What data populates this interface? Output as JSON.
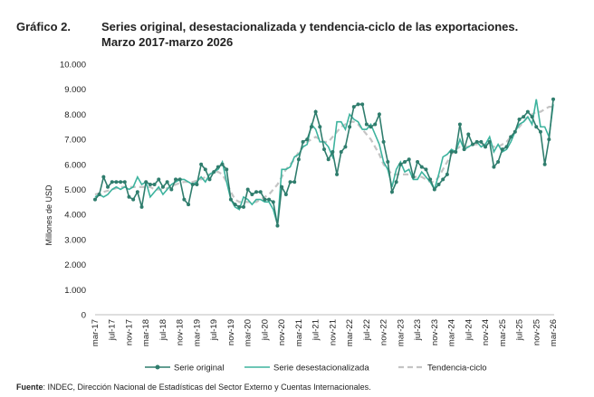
{
  "chart_data": {
    "type": "line",
    "label": "Gráfico 2.",
    "title": "Series original, desestacionalizada y tendencia-ciclo de las exportaciones.",
    "subtitle": "Marzo 2017-marzo 2026",
    "y_label": "Millones de USD",
    "source_label": "Fuente",
    "source": ": INDEC, Dirección Nacional de Estadísticas del Sector Externo y Cuentas Internacionales.",
    "categories": [
      "mar-17",
      null,
      null,
      null,
      "jul-17",
      null,
      null,
      null,
      "nov-17",
      null,
      null,
      null,
      "mar-18",
      null,
      null,
      null,
      "jul-18",
      null,
      null,
      null,
      "nov-18",
      null,
      null,
      null,
      "mar-19",
      null,
      null,
      null,
      "jul-19",
      null,
      null,
      null,
      "nov-19",
      null,
      null,
      null,
      "mar-20",
      null,
      null,
      null,
      "jul-20",
      null,
      null,
      null,
      "nov-20",
      null,
      null,
      null,
      "mar-21",
      null,
      null,
      null,
      "jul-21",
      null,
      null,
      null,
      "nov-21",
      null,
      null,
      null,
      "mar-22",
      null,
      null,
      null,
      "jul-22",
      null,
      null,
      null,
      "nov-22",
      null,
      null,
      null,
      "mar-23",
      null,
      null,
      null,
      "jul-23",
      null,
      null,
      null,
      "nov-23",
      null,
      null,
      null,
      "mar-24",
      null,
      null,
      null,
      "jul-24",
      null,
      null,
      null,
      "nov-24",
      null,
      null,
      null,
      "mar-25",
      null,
      null,
      null,
      "jul-25",
      null,
      null,
      null,
      "nov-25",
      null,
      null,
      null,
      "mar-26"
    ],
    "series": [
      {
        "name": "Serie original",
        "color": "#2f7d6d",
        "markers": true,
        "dashed": false,
        "values": [
          4600,
          4800,
          5500,
          5100,
          5300,
          5300,
          5300,
          5300,
          4700,
          4600,
          4900,
          4300,
          5300,
          5200,
          5200,
          5400,
          5100,
          5300,
          5000,
          5400,
          5400,
          4600,
          4400,
          5200,
          5200,
          6000,
          5800,
          5400,
          5700,
          5900,
          6000,
          5800,
          4600,
          4400,
          4300,
          4300,
          5000,
          4800,
          4900,
          4900,
          4600,
          4600,
          4500,
          3550,
          5100,
          4800,
          5300,
          5300,
          6200,
          6900,
          7000,
          7500,
          8100,
          7500,
          6600,
          6200,
          6500,
          5600,
          6500,
          6700,
          7500,
          8300,
          8400,
          8400,
          7600,
          7500,
          7600,
          8000,
          6900,
          6100,
          4900,
          5300,
          6000,
          6100,
          6200,
          5500,
          6100,
          5900,
          5800,
          5400,
          5000,
          5200,
          5400,
          5600,
          6500,
          6500,
          7600,
          6600,
          7200,
          6800,
          6900,
          6900,
          6700,
          6900,
          5900,
          6100,
          6600,
          6700,
          7100,
          7300,
          7800,
          7900,
          8100,
          7900,
          7500,
          7300,
          6000,
          7000,
          8600
        ]
      },
      {
        "name": "Serie desestacionalizada",
        "color": "#3db39e",
        "markers": false,
        "dashed": false,
        "values": [
          4700,
          4800,
          4700,
          4800,
          5000,
          5100,
          5000,
          5100,
          5000,
          5100,
          5500,
          5200,
          5300,
          4700,
          4900,
          5100,
          4800,
          5000,
          5200,
          5300,
          5400,
          5400,
          5300,
          5200,
          5300,
          5500,
          5300,
          5600,
          5700,
          5800,
          6100,
          5300,
          4600,
          4300,
          4200,
          4700,
          4600,
          4400,
          4600,
          4600,
          4500,
          4500,
          4200,
          3600,
          5800,
          5800,
          5900,
          6300,
          6400,
          6700,
          6800,
          7600,
          7400,
          6900,
          6900,
          6700,
          6300,
          7700,
          7700,
          7400,
          8000,
          7800,
          7700,
          7400,
          7400,
          7600,
          7200,
          6800,
          6100,
          5800,
          5100,
          5800,
          6100,
          5700,
          5800,
          5400,
          5400,
          5700,
          5500,
          5300,
          5000,
          5600,
          6300,
          6400,
          6600,
          6500,
          7000,
          6600,
          6700,
          6800,
          6900,
          6700,
          6800,
          7100,
          6500,
          6800,
          6500,
          6600,
          6900,
          7300,
          7600,
          7700,
          7900,
          7600,
          8600,
          7500,
          7500,
          7100,
          8400
        ]
      },
      {
        "name": "Tendencia-ciclo",
        "color": "#c4c4c4",
        "markers": false,
        "dashed": true,
        "values": [
          4800,
          4850,
          4900,
          4950,
          5000,
          5050,
          5100,
          5100,
          5100,
          5100,
          5100,
          5100,
          5100,
          5100,
          5000,
          5000,
          5000,
          5050,
          5100,
          5200,
          5250,
          5300,
          5300,
          5300,
          5350,
          5400,
          5500,
          5600,
          5700,
          5700,
          5600,
          5300,
          4900,
          4600,
          4500,
          4500,
          4500,
          4500,
          4500,
          4600,
          4700,
          4800,
          5000,
          5200,
          5500,
          5800,
          6000,
          6200,
          6500,
          6700,
          6900,
          7000,
          7100,
          7000,
          6900,
          6900,
          7100,
          7300,
          7500,
          7600,
          7700,
          7700,
          7600,
          7400,
          7200,
          7000,
          6700,
          6400,
          6000,
          5800,
          5600,
          5600,
          5600,
          5600,
          5600,
          5500,
          5500,
          5500,
          5400,
          5300,
          5300,
          5500,
          5800,
          6100,
          6400,
          6600,
          6700,
          6700,
          6700,
          6800,
          6800,
          6800,
          6800,
          6800,
          6700,
          6700,
          6800,
          6900,
          7100,
          7300,
          7500,
          7700,
          7900,
          8000,
          8100,
          8100,
          8200,
          8300,
          8300
        ]
      }
    ],
    "ylim": [
      0,
      10000
    ],
    "yticks": [
      0,
      {
        "value": 1000,
        "label": "1.000"
      },
      {
        "value": 2000,
        "label": "2.000"
      },
      {
        "value": 3000,
        "label": "3.000"
      },
      {
        "value": 4000,
        "label": "4.000"
      },
      {
        "value": 5000,
        "label": "5.000"
      },
      {
        "value": 6000,
        "label": "6.000"
      },
      {
        "value": 7000,
        "label": "7.000"
      },
      {
        "value": 8000,
        "label": "8.000"
      },
      {
        "value": 9000,
        "label": "9.000"
      },
      {
        "value": 10000,
        "label": "10.000"
      }
    ],
    "grid": false
  }
}
